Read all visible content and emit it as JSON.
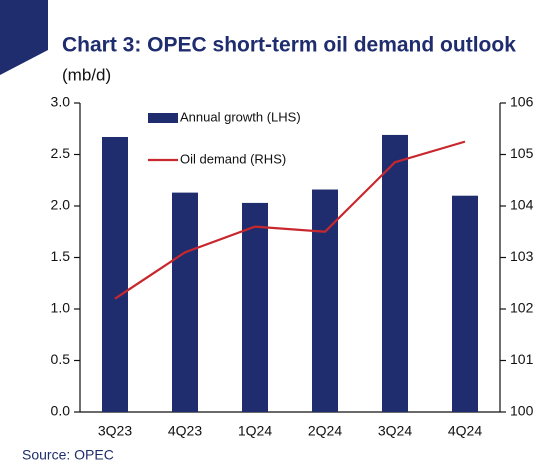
{
  "chart_data": {
    "type": "bar_line",
    "title": "Chart 3: OPEC short-term oil demand outlook",
    "subtitle": "(mb/d)",
    "source": "Source: OPEC",
    "categories": [
      "3Q23",
      "4Q23",
      "1Q24",
      "2Q24",
      "3Q24",
      "4Q24"
    ],
    "series": [
      {
        "name": "Annual growth (LHS)",
        "type": "bar",
        "color": "#1f2d6e",
        "values": [
          2.67,
          2.13,
          2.03,
          2.16,
          2.69,
          2.1
        ]
      },
      {
        "name": "Oil demand (RHS)",
        "type": "line",
        "color": "#c8282d",
        "axis": "y2",
        "values": [
          102.2,
          103.1,
          103.6,
          103.5,
          104.85,
          105.25
        ]
      }
    ],
    "ylim": [
      0,
      3
    ],
    "yticks": [
      {
        "value": 0,
        "label": "0.0"
      },
      {
        "value": 0.5,
        "label": "0.5"
      },
      {
        "value": 1,
        "label": "1.0"
      },
      {
        "value": 1.5,
        "label": "1.5"
      },
      {
        "value": 2,
        "label": "2.0"
      },
      {
        "value": 2.5,
        "label": "2.5"
      },
      {
        "value": 3,
        "label": "3.0"
      }
    ],
    "y2lim": [
      100,
      106
    ],
    "y2ticks": [
      100,
      101,
      102,
      103,
      104,
      105,
      106
    ],
    "grid": false
  }
}
